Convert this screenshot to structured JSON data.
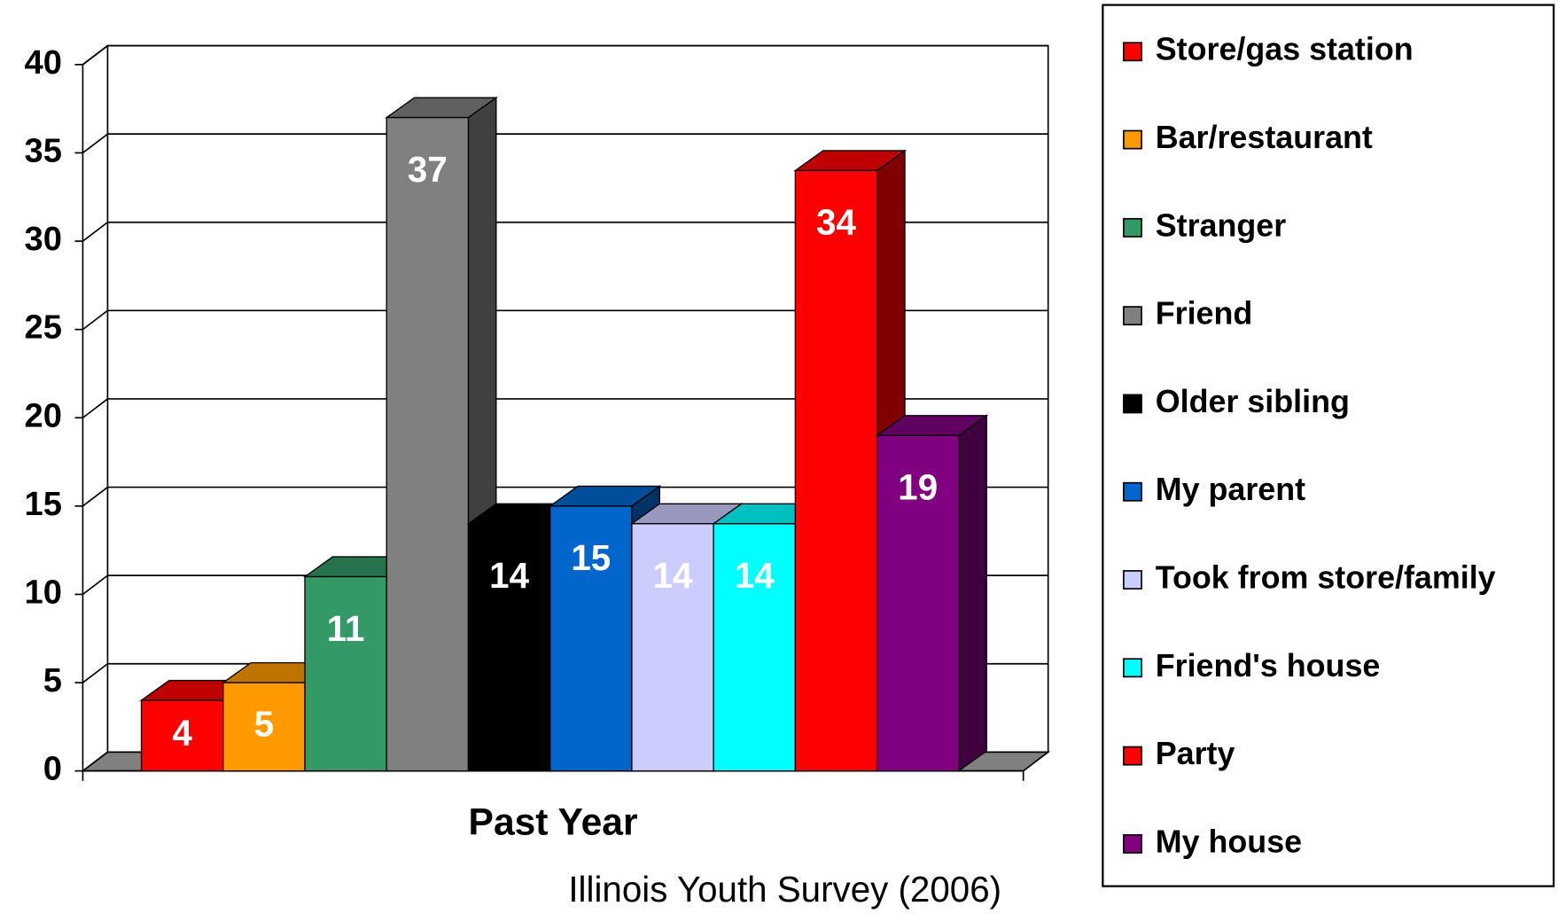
{
  "chart_data": {
    "type": "bar3d",
    "source": "Illinois Youth Survey (2006)",
    "categories": [
      "Past Year"
    ],
    "series": [
      {
        "name": "Store/gas station",
        "color": "#ff0000",
        "values": [
          4
        ]
      },
      {
        "name": "Bar/restaurant",
        "color": "#ff9900",
        "values": [
          5
        ]
      },
      {
        "name": "Stranger",
        "color": "#339966",
        "values": [
          11
        ]
      },
      {
        "name": "Friend",
        "color": "#808080",
        "values": [
          37
        ]
      },
      {
        "name": "Older sibling",
        "color": "#000000",
        "values": [
          14
        ]
      },
      {
        "name": "My parent",
        "color": "#0066cc",
        "values": [
          15
        ]
      },
      {
        "name": "Took from store/family",
        "color": "#ccccff",
        "values": [
          14
        ]
      },
      {
        "name": "Friend's house",
        "color": "#00ffff",
        "values": [
          14
        ]
      },
      {
        "name": "Party",
        "color": "#ff0000",
        "values": [
          34
        ]
      },
      {
        "name": "My house",
        "color": "#800080",
        "values": [
          19
        ]
      }
    ],
    "ylim": [
      0,
      40
    ],
    "yticks": [
      0,
      5,
      10,
      15,
      20,
      25,
      30,
      35,
      40
    ],
    "grid": true,
    "legend": "right"
  }
}
